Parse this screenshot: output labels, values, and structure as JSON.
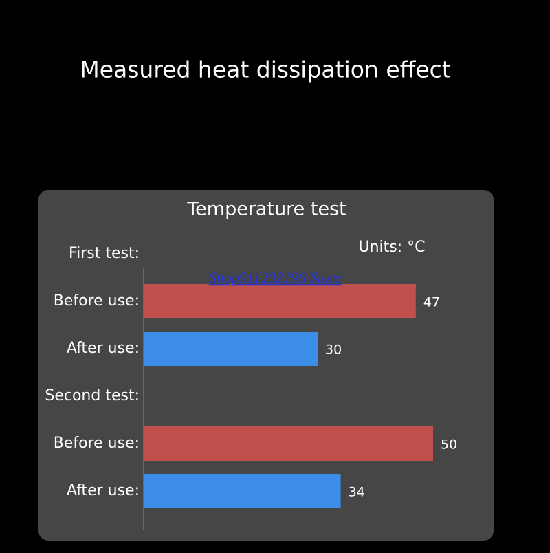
{
  "header": {
    "title": "Measured heat dissipation effect"
  },
  "chart_data": {
    "type": "hbar",
    "title": "Temperature test",
    "units": "Units: °C",
    "watermark": "Shop911202196 Store",
    "categories": [
      "First test:",
      "Before use:",
      "After use:",
      "Second test:",
      "Before use:",
      "After use:"
    ],
    "values": [
      null,
      47,
      30,
      null,
      50,
      34
    ],
    "colors": [
      null,
      "#c0504d",
      "#3d8ee8",
      null,
      "#c0504d",
      "#3d8ee8"
    ]
  }
}
